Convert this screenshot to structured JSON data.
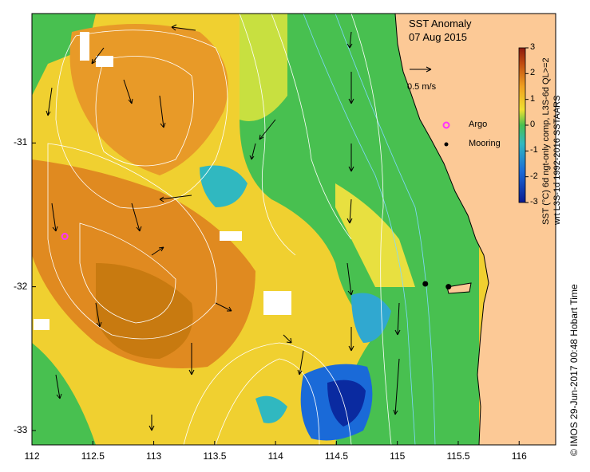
{
  "title": {
    "line1": "SST Anomaly",
    "line2": "07 Aug 2015"
  },
  "map": {
    "lon_min": 112,
    "lon_max": 116.3,
    "lat_min": -33.1,
    "lat_max": -30.1,
    "x_ticks": [
      "112",
      "112.5",
      "113",
      "113.5",
      "114",
      "114.5",
      "115",
      "115.5",
      "116"
    ],
    "x_tick_values": [
      112,
      112.5,
      113,
      113.5,
      114,
      114.5,
      115,
      115.5,
      116
    ],
    "y_ticks": [
      "-31",
      "-32",
      "-33"
    ],
    "y_tick_values": [
      -31,
      -32,
      -33
    ]
  },
  "reference_vector": {
    "label": "0.5 m/s",
    "speed": 0.5
  },
  "legend": {
    "argo_label": "Argo",
    "mooring_label": "Mooring",
    "argo_color": "#ff33ff",
    "mooring_color": "#000000"
  },
  "colorbar": {
    "ticks": [
      "3",
      "2",
      "1",
      "0",
      "-1",
      "-2",
      "-3"
    ],
    "tick_values": [
      3,
      2,
      1,
      0,
      -1,
      -2,
      -3
    ],
    "range": [
      -3,
      3
    ],
    "label_line1": "SST (°C) 6d ngt-only comp, L3S-6d QL>=2",
    "label_line2": "wrt L3S-1d 1992-2016 SSTAARS"
  },
  "markers": {
    "argo": [
      {
        "lon": 112.27,
        "lat": -31.65
      }
    ],
    "mooring": [
      {
        "lon": 115.23,
        "lat": -31.98
      },
      {
        "lon": 115.42,
        "lat": -32.0
      }
    ]
  },
  "footer": {
    "credit": "© IMOS 29-Jun-2017 00:48 Hobart Time"
  },
  "colors": {
    "land": "#fcc996",
    "anomaly_high": "#c87a10",
    "anomaly_warm": "#f0a020",
    "anomaly_mild": "#f0e030",
    "anomaly_neutral": "#48c050",
    "anomaly_cool": "#30b8c0",
    "anomaly_cold": "#1040c8",
    "contour": "#ffffff",
    "isobath": "#7fd8ff",
    "no_data": "#ffffff"
  }
}
